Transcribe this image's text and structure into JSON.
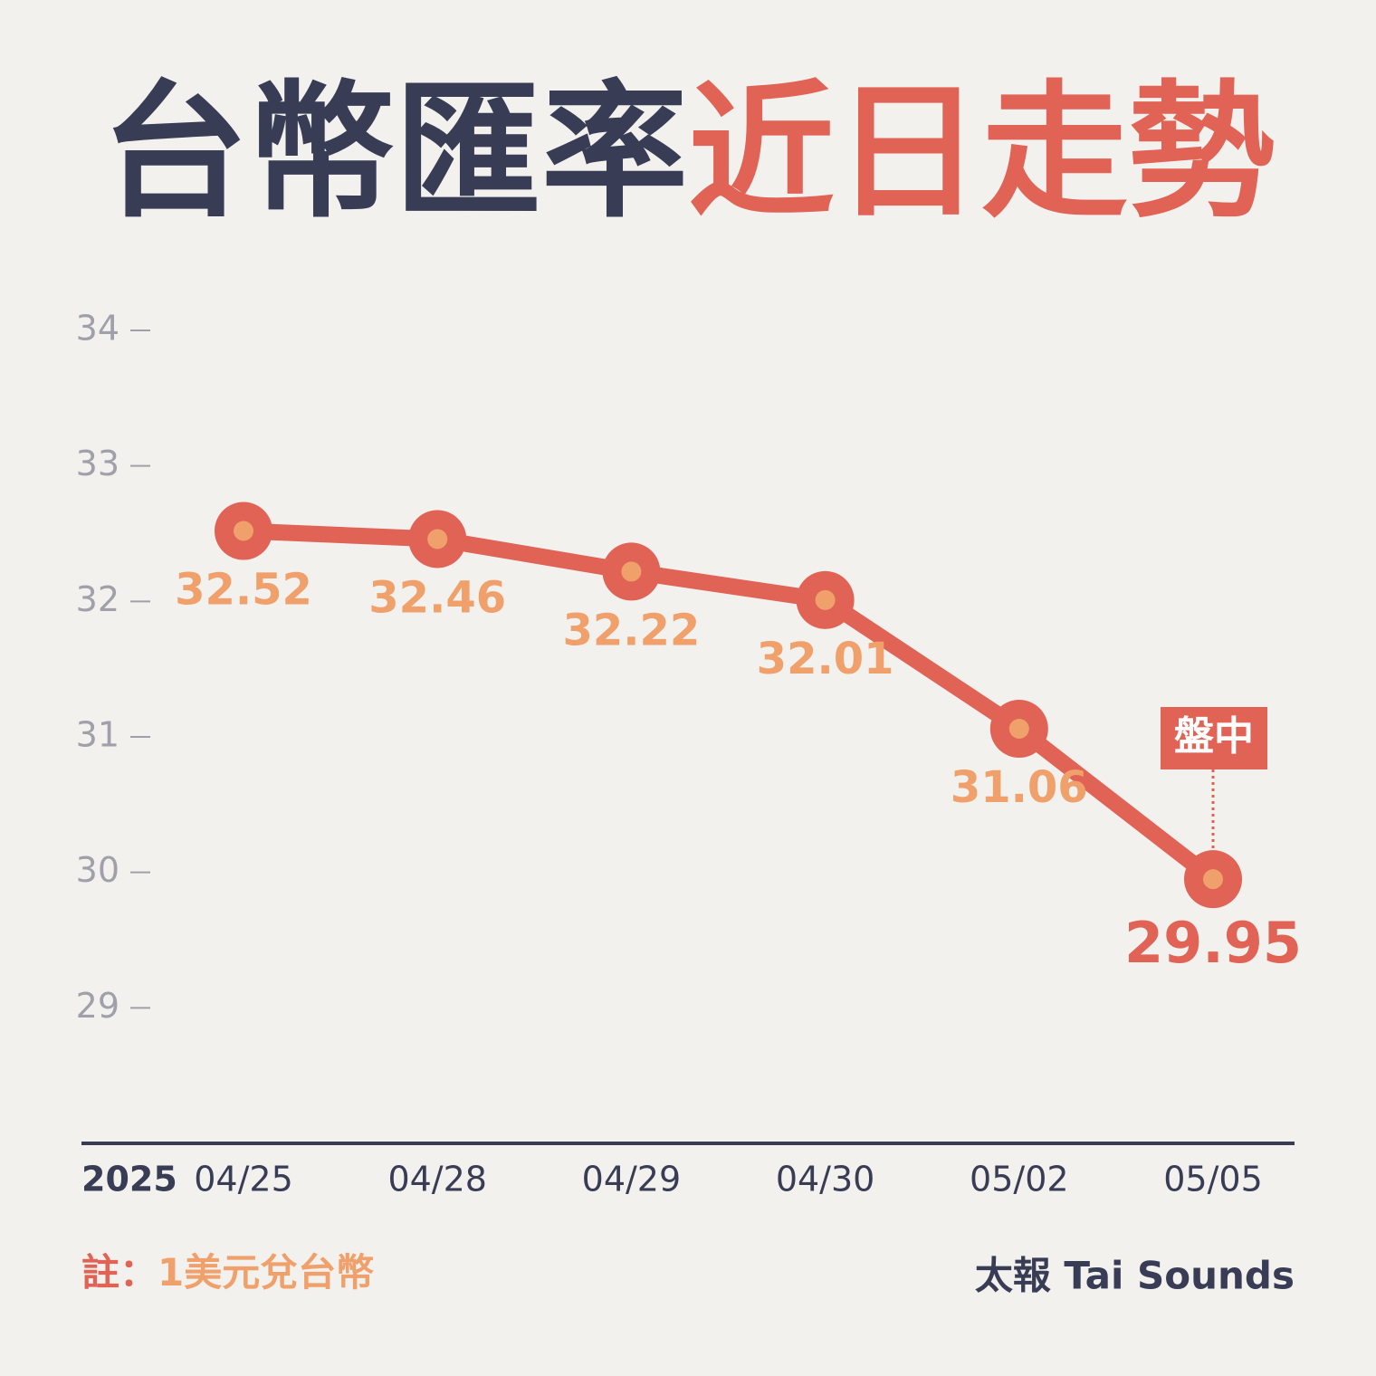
{
  "chart_data": {
    "type": "line",
    "title": "台幣匯率",
    "title_highlight": "近日走勢",
    "x_year_label": "2025",
    "categories": [
      "04/25",
      "04/28",
      "04/29",
      "04/30",
      "05/02",
      "05/05"
    ],
    "values": [
      32.52,
      32.46,
      32.22,
      32.01,
      31.06,
      29.95
    ],
    "color": "#e06355",
    "marker_color": "#f0a06a",
    "ylim": [
      28,
      34
    ],
    "yticks": [
      29,
      30,
      31,
      32,
      33,
      34
    ],
    "annotation": "盤中",
    "note_label": "註：",
    "note": "1美元兌台幣",
    "source": "太報 Tai Sounds"
  }
}
